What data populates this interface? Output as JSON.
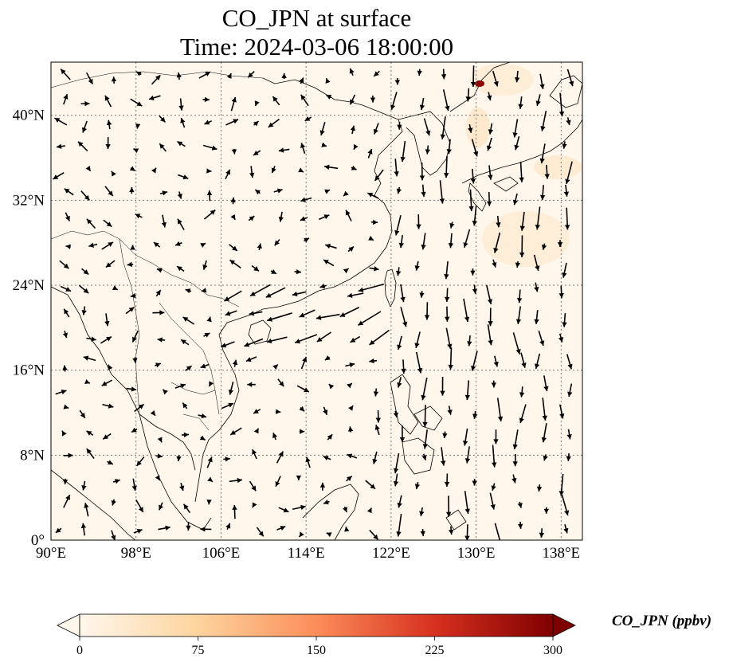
{
  "map": {
    "title_line1": "CO_JPN at surface",
    "title_line2": "Time: 2024-03-06 18:00:00",
    "extent": {
      "lon": [
        90,
        140
      ],
      "lat": [
        0,
        45
      ]
    },
    "lon_ticks": [
      90,
      98,
      106,
      114,
      122,
      130,
      138
    ],
    "lon_tick_labels": [
      "90°E",
      "98°E",
      "106°E",
      "114°E",
      "122°E",
      "130°E",
      "138°E"
    ],
    "lat_ticks": [
      0,
      8,
      16,
      24,
      32,
      40
    ],
    "lat_tick_labels": [
      "0°",
      "8°N",
      "16°N",
      "24°N",
      "32°N",
      "40°N"
    ],
    "gridlines": true,
    "background_color": "#fff7ec",
    "hotspot": {
      "lon": 130.2,
      "lat": 43.1,
      "color": "#8b0000"
    }
  },
  "colorbar": {
    "label": "CO_JPN (ppbv)",
    "ticks": [
      0,
      75,
      150,
      225,
      300
    ],
    "tick_labels": [
      "0",
      "75",
      "150",
      "225",
      "300"
    ],
    "range": [
      0,
      300
    ],
    "colors": [
      "#fff7ec",
      "#fdd49e",
      "#fc8d59",
      "#d7301f",
      "#7f0000"
    ]
  }
}
